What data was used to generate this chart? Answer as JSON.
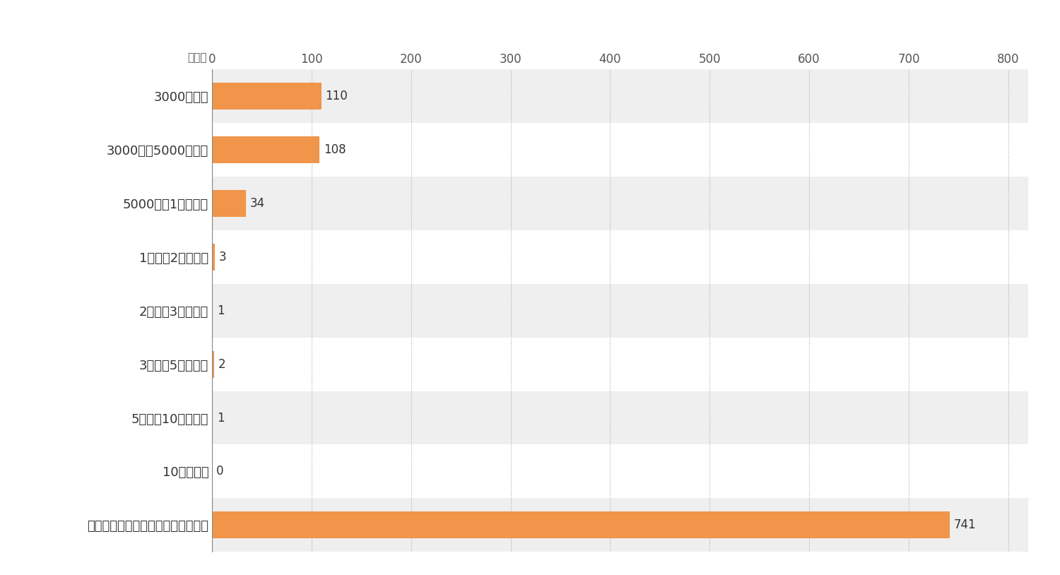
{
  "categories": [
    "3000円未満",
    "3000円～5000円未満",
    "5000円～1万円未満",
    "1万円～2万円未満",
    "2万円～3万円未満",
    "3万円～5万円未満",
    "5万円～10万円未満",
    "10万円以上",
    "利用したことがないのでわからない"
  ],
  "values": [
    110,
    108,
    34,
    3,
    1,
    2,
    1,
    0,
    741
  ],
  "bar_color": "#F0954A",
  "background_color": "#EFEFEF",
  "white_row_color": "#FFFFFF",
  "xlim": [
    0,
    820
  ],
  "xticks": [
    0,
    100,
    200,
    300,
    400,
    500,
    600,
    700,
    800
  ],
  "xlabel_unit": "（人）",
  "value_label_fontsize": 12,
  "tick_label_fontsize": 12,
  "category_fontsize": 13,
  "bar_height": 0.5
}
